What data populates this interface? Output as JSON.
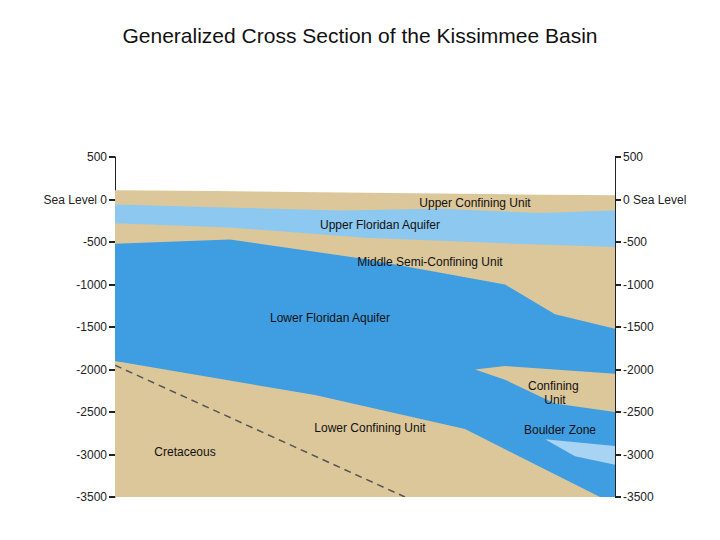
{
  "chart_data": {
    "type": "cross_section",
    "title": "Generalized Cross Section of the Kissimmee Basin",
    "xlim": [
      0,
      100
    ],
    "ylim": [
      -3500,
      500
    ],
    "yticks": [
      500,
      {
        "value": 0,
        "label": "Sea Level 0"
      },
      -500,
      -1000,
      -1500,
      -2000,
      -2500,
      -3000,
      -3500
    ],
    "y2lim": [
      -3500,
      500
    ],
    "y2ticks": [
      500,
      {
        "value": 0,
        "label": "0 Sea Level"
      },
      -500,
      -1000,
      -1500,
      -2000,
      -2500,
      -3000,
      -3500
    ],
    "tick_labels": "y",
    "grid": false,
    "layers": [
      {
        "color": "#dcc79a",
        "points": [
          [
            0,
            110
          ],
          [
            20,
            100
          ],
          [
            50,
            80
          ],
          [
            80,
            60
          ],
          [
            100,
            50
          ],
          [
            100,
            -3500
          ],
          [
            0,
            -3500
          ]
        ]
      },
      {
        "color": "#8cc8ef",
        "points": [
          [
            0,
            -60
          ],
          [
            20,
            -90
          ],
          [
            45,
            -130
          ],
          [
            65,
            -110
          ],
          [
            85,
            -160
          ],
          [
            100,
            -130
          ],
          [
            100,
            -560
          ],
          [
            80,
            -520
          ],
          [
            50,
            -450
          ],
          [
            23,
            -330
          ],
          [
            0,
            -280
          ]
        ]
      },
      {
        "color": "#3f9de2",
        "points": [
          [
            0,
            -520
          ],
          [
            23,
            -470
          ],
          [
            50,
            -700
          ],
          [
            78,
            -1000
          ],
          [
            88,
            -1350
          ],
          [
            100,
            -1520
          ],
          [
            100,
            -3500
          ],
          [
            97,
            -3500
          ],
          [
            70,
            -2700
          ],
          [
            40,
            -2300
          ],
          [
            0,
            -1900
          ]
        ]
      },
      {
        "color": "#dcc79a",
        "points": [
          [
            72,
            -2000
          ],
          [
            78,
            -1960
          ],
          [
            100,
            -2050
          ],
          [
            100,
            -2500
          ],
          [
            88,
            -2400
          ],
          [
            78,
            -2120
          ]
        ]
      },
      {
        "color": "#a9d3f3",
        "points": [
          [
            86,
            -2820
          ],
          [
            100,
            -2900
          ],
          [
            100,
            -3120
          ],
          [
            92,
            -3020
          ]
        ]
      }
    ],
    "contacts": [
      {
        "line_style": "dashed",
        "color": "#555555",
        "points": [
          [
            0,
            -1950
          ],
          [
            58,
            -3500
          ]
        ]
      }
    ],
    "annotations": [
      {
        "text": "Upper Confining Unit",
        "x": 72,
        "y": -40
      },
      {
        "text": "Upper Floridan Aquifer",
        "x": 53,
        "y": -300
      },
      {
        "text": "Middle Semi-Confining Unit",
        "x": 63,
        "y": -735
      },
      {
        "text": "Lower Floridan Aquifer",
        "x": 43,
        "y": -1394
      },
      {
        "text": "Confining Unit",
        "x": 88,
        "y": -2276
      },
      {
        "text": "Lower Confining Unit",
        "x": 51,
        "y": -2694
      },
      {
        "text": "Boulder Zone",
        "x": 89,
        "y": -2717
      },
      {
        "text": "Cretaceous",
        "x": 14,
        "y": -2970
      }
    ]
  }
}
